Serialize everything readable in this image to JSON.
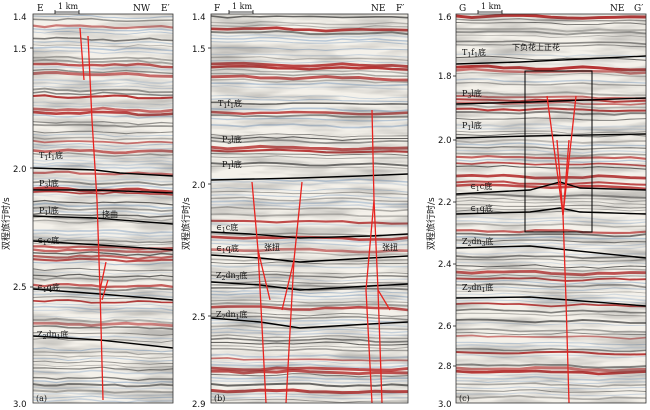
{
  "figure": {
    "panels": [
      {
        "id": "a",
        "panel_label": "(a)",
        "left_label": "E",
        "right_label": "E′",
        "direction": "NW",
        "scale_bar": "1 km",
        "y_axis_title": "双程旅行时/s",
        "ticks": [
          "1.5",
          "2.0",
          "2.5",
          "3.0"
        ],
        "extra_tick_labels": [
          "1.4"
        ],
        "horizons": [
          {
            "sym": "T",
            "sub1": "1",
            "mid": "f",
            "sub2": "1",
            "suffix": "底"
          },
          {
            "sym": "P",
            "sub1": "3",
            "mid": "l",
            "sub2": "",
            "suffix": "底"
          },
          {
            "sym": "P",
            "sub1": "1",
            "mid": "l",
            "sub2": "",
            "suffix": "底"
          },
          {
            "sym": "∈",
            "sub1": "1",
            "mid": "c",
            "sub2": "",
            "suffix": "底"
          },
          {
            "sym": "∈",
            "sub1": "1",
            "mid": "q",
            "sub2": "",
            "suffix": "底"
          },
          {
            "sym": "Z",
            "sub1": "2",
            "mid": "dn",
            "sub2": "1",
            "suffix": "底"
          }
        ],
        "annotations": [
          "挠曲"
        ]
      },
      {
        "id": "b",
        "panel_label": "(b)",
        "left_label": "F",
        "right_label": "F′",
        "direction": "NE",
        "scale_bar": "1 km",
        "y_axis_title": "双程旅行时/s",
        "ticks": [
          "1.4",
          "1.5",
          "2.0",
          "2.5",
          "2.9"
        ],
        "horizons": [
          {
            "sym": "T",
            "sub1": "1",
            "mid": "f",
            "sub2": "1",
            "suffix": "底"
          },
          {
            "sym": "P",
            "sub1": "3",
            "mid": "l",
            "sub2": "",
            "suffix": "底"
          },
          {
            "sym": "P",
            "sub1": "1",
            "mid": "l",
            "sub2": "",
            "suffix": "底"
          },
          {
            "sym": "∈",
            "sub1": "1",
            "mid": "c",
            "sub2": "",
            "suffix": "底"
          },
          {
            "sym": "∈",
            "sub1": "1",
            "mid": "q",
            "sub2": "",
            "suffix": "底"
          },
          {
            "sym": "Z",
            "sub1": "2",
            "mid": "dn",
            "sub2": "3",
            "suffix": "底"
          },
          {
            "sym": "Z",
            "sub1": "2",
            "mid": "dn",
            "sub2": "1",
            "suffix": "底"
          }
        ],
        "annotations": [
          "张扭",
          "张扭"
        ]
      },
      {
        "id": "c",
        "panel_label": "(c)",
        "left_label": "G",
        "right_label": "G′",
        "direction": "NE",
        "scale_bar": "1 km",
        "y_axis_title": "双程旅行时/s",
        "ticks": [
          "1.6",
          "1.8",
          "2.0",
          "2.2",
          "2.4",
          "2.6",
          "2.8",
          "3.0"
        ],
        "horizons": [
          {
            "sym": "T",
            "sub1": "1",
            "mid": "f",
            "sub2": "1",
            "suffix": "底"
          },
          {
            "sym": "P",
            "sub1": "3",
            "mid": "l",
            "sub2": "",
            "suffix": "底"
          },
          {
            "sym": "P",
            "sub1": "1",
            "mid": "l",
            "sub2": "",
            "suffix": "底"
          },
          {
            "sym": "∈",
            "sub1": "1",
            "mid": "c",
            "sub2": "",
            "suffix": "底"
          },
          {
            "sym": "∈",
            "sub1": "1",
            "mid": "q",
            "sub2": "",
            "suffix": "底"
          },
          {
            "sym": "Z",
            "sub1": "2",
            "mid": "dn",
            "sub2": "3",
            "suffix": "底"
          },
          {
            "sym": "Z",
            "sub1": "2",
            "mid": "dn",
            "sub2": "1",
            "suffix": "底"
          }
        ],
        "annotations": [
          "下负花上正花"
        ]
      }
    ],
    "colors": {
      "background": "#f4f1ea",
      "reflector_red": "#b01f1f",
      "reflector_dark": "#222222",
      "reflector_blue": "#9ab2cc",
      "horizon_line": "#000000",
      "fault_line": "#e8231f"
    }
  }
}
